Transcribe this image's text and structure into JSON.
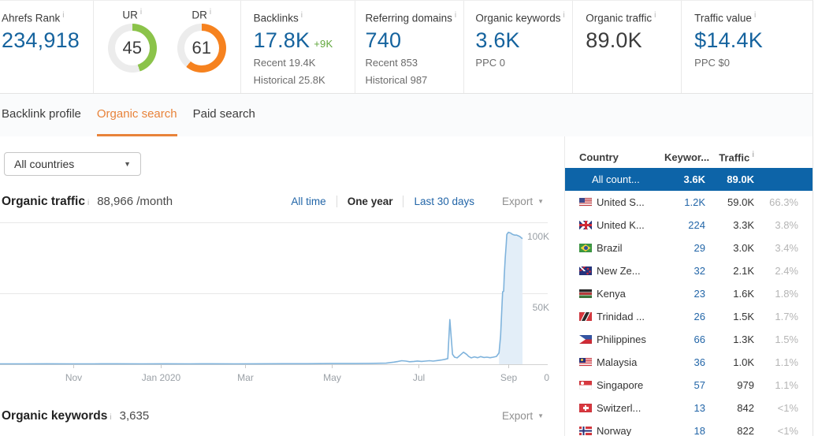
{
  "colors": {
    "value_blue": "#15639e",
    "link_blue": "#2366a8",
    "delta_green": "#61a73c",
    "donut_green": "#8bc34a",
    "donut_orange": "#f6821f",
    "selected_row": "#0d64a8",
    "tab_active": "#e8833a",
    "line": "#7fb3dc",
    "highlight": "#e3eef8"
  },
  "metrics": {
    "ahrefs_rank": {
      "label": "Ahrefs Rank",
      "value": "234,918"
    },
    "ur": {
      "label": "UR",
      "value": "45",
      "percent": 45
    },
    "dr": {
      "label": "DR",
      "value": "61",
      "percent": 61
    },
    "backlinks": {
      "label": "Backlinks",
      "value": "17.8K",
      "delta": "+9K",
      "recent": "Recent 19.4K",
      "historical": "Historical 25.8K"
    },
    "referring_domains": {
      "label": "Referring domains",
      "value": "740",
      "recent": "Recent 853",
      "historical": "Historical 987"
    },
    "organic_keywords": {
      "label": "Organic keywords",
      "value": "3.6K",
      "sub": "PPC 0"
    },
    "organic_traffic": {
      "label": "Organic traffic",
      "value": "89.0K"
    },
    "traffic_value": {
      "label": "Traffic value",
      "value": "$14.4K",
      "sub": "PPC $0"
    }
  },
  "tabs": [
    {
      "label": "Backlink profile",
      "active": false
    },
    {
      "label": "Organic search",
      "active": true
    },
    {
      "label": "Paid search",
      "active": false
    }
  ],
  "filters": {
    "country_dropdown": "All countries"
  },
  "traffic_section": {
    "title": "Organic traffic",
    "value": "88,966 /month",
    "ranges": [
      {
        "label": "All time",
        "active": false
      },
      {
        "label": "One year",
        "active": true
      },
      {
        "label": "Last 30 days",
        "active": false
      }
    ],
    "export_label": "Export"
  },
  "keywords_section": {
    "title": "Organic keywords",
    "value": "3,635",
    "export_label": "Export"
  },
  "countries_table": {
    "headers": {
      "country": "Country",
      "keywords": "Keywor...",
      "traffic": "Traffic"
    },
    "rows": [
      {
        "flag": null,
        "name": "All count...",
        "keywords": "3.6K",
        "traffic": "89.0K",
        "share": "",
        "selected": true
      },
      {
        "flag": "us",
        "name": "United S...",
        "keywords": "1.2K",
        "traffic": "59.0K",
        "share": "66.3%",
        "selected": false
      },
      {
        "flag": "gb",
        "name": "United K...",
        "keywords": "224",
        "traffic": "3.3K",
        "share": "3.8%",
        "selected": false
      },
      {
        "flag": "br",
        "name": "Brazil",
        "keywords": "29",
        "traffic": "3.0K",
        "share": "3.4%",
        "selected": false
      },
      {
        "flag": "nz",
        "name": "New Ze...",
        "keywords": "32",
        "traffic": "2.1K",
        "share": "2.4%",
        "selected": false
      },
      {
        "flag": "ke",
        "name": "Kenya",
        "keywords": "23",
        "traffic": "1.6K",
        "share": "1.8%",
        "selected": false
      },
      {
        "flag": "tt",
        "name": "Trinidad ...",
        "keywords": "26",
        "traffic": "1.5K",
        "share": "1.7%",
        "selected": false
      },
      {
        "flag": "ph",
        "name": "Philippines",
        "keywords": "66",
        "traffic": "1.3K",
        "share": "1.5%",
        "selected": false
      },
      {
        "flag": "my",
        "name": "Malaysia",
        "keywords": "36",
        "traffic": "1.0K",
        "share": "1.1%",
        "selected": false
      },
      {
        "flag": "sg",
        "name": "Singapore",
        "keywords": "57",
        "traffic": "979",
        "share": "1.1%",
        "selected": false
      },
      {
        "flag": "ch",
        "name": "Switzerl...",
        "keywords": "13",
        "traffic": "842",
        "share": "<1%",
        "selected": false
      },
      {
        "flag": "no",
        "name": "Norway",
        "keywords": "18",
        "traffic": "822",
        "share": "<1%",
        "selected": false
      }
    ]
  },
  "chart_data": {
    "type": "area",
    "title": "Organic traffic",
    "xlabel": "",
    "ylabel": "",
    "ylim": [
      0,
      100000
    ],
    "grid": true,
    "legend": false,
    "highlight_from_f": 0.952,
    "x_ticks": [
      {
        "label": "Nov",
        "f": 0.14
      },
      {
        "label": "Jan 2020",
        "f": 0.308
      },
      {
        "label": "Mar",
        "f": 0.469
      },
      {
        "label": "May",
        "f": 0.635
      },
      {
        "label": "Jul",
        "f": 0.801
      },
      {
        "label": "Sep",
        "f": 0.973
      }
    ],
    "y_ticks": [
      {
        "label": "0",
        "value": 0
      },
      {
        "label": "50K",
        "value": 50000
      },
      {
        "label": "100K",
        "value": 100000
      }
    ],
    "points": [
      [
        0.0,
        300
      ],
      [
        0.045,
        300
      ],
      [
        0.09,
        350
      ],
      [
        0.136,
        300
      ],
      [
        0.18,
        300
      ],
      [
        0.226,
        350
      ],
      [
        0.271,
        300
      ],
      [
        0.317,
        350
      ],
      [
        0.362,
        300
      ],
      [
        0.407,
        350
      ],
      [
        0.452,
        300
      ],
      [
        0.497,
        350
      ],
      [
        0.543,
        400
      ],
      [
        0.588,
        400
      ],
      [
        0.633,
        500
      ],
      [
        0.679,
        500
      ],
      [
        0.709,
        600
      ],
      [
        0.739,
        800
      ],
      [
        0.754,
        1500
      ],
      [
        0.762,
        2000
      ],
      [
        0.769,
        2500
      ],
      [
        0.777,
        2200
      ],
      [
        0.784,
        1800
      ],
      [
        0.792,
        2000
      ],
      [
        0.799,
        2300
      ],
      [
        0.807,
        2000
      ],
      [
        0.814,
        2200
      ],
      [
        0.822,
        2500
      ],
      [
        0.829,
        2200
      ],
      [
        0.837,
        2600
      ],
      [
        0.845,
        3000
      ],
      [
        0.852,
        3500
      ],
      [
        0.857,
        4000
      ],
      [
        0.861,
        31500
      ],
      [
        0.866,
        7000
      ],
      [
        0.87,
        5000
      ],
      [
        0.875,
        4500
      ],
      [
        0.881,
        6500
      ],
      [
        0.887,
        8500
      ],
      [
        0.893,
        7000
      ],
      [
        0.897,
        5500
      ],
      [
        0.902,
        4500
      ],
      [
        0.908,
        5200
      ],
      [
        0.914,
        4600
      ],
      [
        0.92,
        5400
      ],
      [
        0.926,
        4800
      ],
      [
        0.932,
        5000
      ],
      [
        0.938,
        4600
      ],
      [
        0.944,
        5000
      ],
      [
        0.95,
        5500
      ],
      [
        0.955,
        8000
      ],
      [
        0.958,
        20000
      ],
      [
        0.961,
        43000
      ],
      [
        0.962,
        51000
      ],
      [
        0.964,
        51500
      ],
      [
        0.965,
        62000
      ],
      [
        0.967,
        75000
      ],
      [
        0.969,
        85000
      ],
      [
        0.97,
        91500
      ],
      [
        0.973,
        93000
      ],
      [
        0.977,
        92500
      ],
      [
        0.981,
        91500
      ],
      [
        0.985,
        91000
      ],
      [
        0.989,
        91000
      ],
      [
        0.992,
        90500
      ],
      [
        0.995,
        90000
      ],
      [
        0.998,
        89000
      ],
      [
        1.0,
        88500
      ]
    ]
  }
}
